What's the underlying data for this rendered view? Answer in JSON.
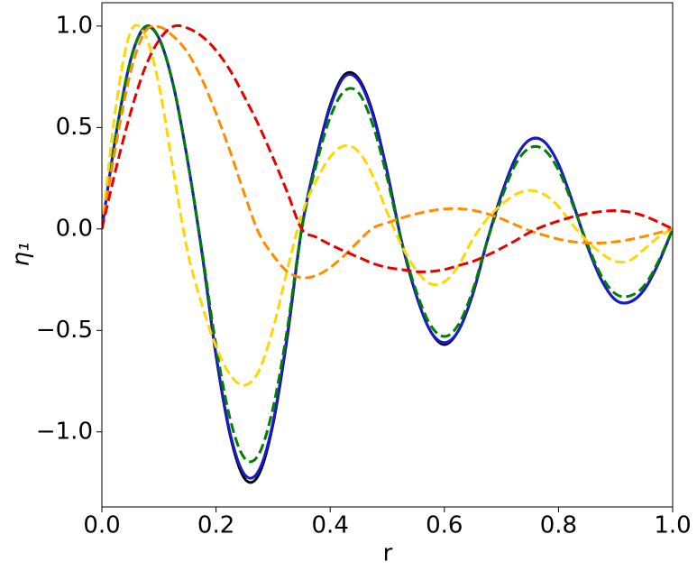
{
  "chart_data": {
    "type": "line",
    "xlabel": "r",
    "ylabel": "η₁",
    "x": [
      0,
      0.025,
      0.05,
      0.075,
      0.1,
      0.125,
      0.15,
      0.175,
      0.2,
      0.225,
      0.25,
      0.275,
      0.3,
      0.325,
      0.35,
      0.375,
      0.4,
      0.425,
      0.45,
      0.475,
      0.5,
      0.525,
      0.55,
      0.575,
      0.6,
      0.625,
      0.65,
      0.675,
      0.7,
      0.725,
      0.75,
      0.775,
      0.8,
      0.825,
      0.85,
      0.875,
      0.9,
      0.925,
      0.95,
      0.975,
      1.0
    ],
    "series": [
      {
        "color": "#000000",
        "dashed": false,
        "values": [
          0,
          0.47,
          0.83,
          0.995,
          0.94,
          0.71,
          0.34,
          -0.11,
          -0.625,
          -1.02,
          -1.23,
          -1.21,
          -0.96,
          -0.53,
          0,
          0.34,
          0.61,
          0.76,
          0.74,
          0.57,
          0.28,
          -0.06,
          -0.32,
          -0.5,
          -0.57,
          -0.5,
          -0.32,
          -0.06,
          0.17,
          0.35,
          0.44,
          0.43,
          0.32,
          0.13,
          -0.08,
          -0.25,
          -0.35,
          -0.36,
          -0.3,
          -0.17,
          0
        ]
      },
      {
        "color": "#1a1acd",
        "dashed": false,
        "values": [
          0,
          0.47,
          0.83,
          0.99,
          0.94,
          0.71,
          0.34,
          -0.11,
          -0.62,
          -1.01,
          -1.21,
          -1.19,
          -0.95,
          -0.52,
          0,
          0.34,
          0.6,
          0.75,
          0.73,
          0.56,
          0.28,
          -0.06,
          -0.32,
          -0.5,
          -0.56,
          -0.5,
          -0.32,
          -0.06,
          0.17,
          0.35,
          0.44,
          0.43,
          0.32,
          0.13,
          -0.08,
          -0.25,
          -0.35,
          -0.36,
          -0.3,
          -0.17,
          0
        ]
      },
      {
        "color": "#008000",
        "dashed": true,
        "values": [
          0,
          0.47,
          0.83,
          0.995,
          0.94,
          0.71,
          0.34,
          -0.1,
          -0.575,
          -0.94,
          -1.13,
          -1.11,
          -0.88,
          -0.49,
          0,
          0.31,
          0.55,
          0.68,
          0.67,
          0.51,
          0.25,
          -0.06,
          -0.3,
          -0.47,
          -0.53,
          -0.47,
          -0.3,
          -0.06,
          0.15,
          0.32,
          0.4,
          0.39,
          0.29,
          0.12,
          -0.07,
          -0.23,
          -0.32,
          -0.33,
          -0.28,
          -0.16,
          0
        ]
      },
      {
        "color": "#ffd700",
        "dashed": true,
        "values": [
          0,
          0.61,
          0.97,
          0.96,
          0.71,
          0.29,
          -0.11,
          -0.37,
          -0.58,
          -0.72,
          -0.77,
          -0.7,
          -0.49,
          -0.2,
          0.07,
          0.235,
          0.355,
          0.41,
          0.38,
          0.26,
          0.08,
          -0.08,
          -0.2,
          -0.27,
          -0.26,
          -0.18,
          -0.05,
          0.05,
          0.12,
          0.17,
          0.19,
          0.17,
          0.11,
          0.02,
          -0.06,
          -0.12,
          -0.16,
          -0.155,
          -0.1,
          -0.04,
          0
        ]
      },
      {
        "color": "#ff8c00",
        "dashed": true,
        "values": [
          0,
          0.42,
          0.77,
          0.97,
          0.996,
          0.95,
          0.87,
          0.74,
          0.57,
          0.38,
          0.17,
          -0.02,
          -0.13,
          -0.21,
          -0.24,
          -0.23,
          -0.19,
          -0.13,
          -0.06,
          0.005,
          0.03,
          0.054,
          0.074,
          0.089,
          0.098,
          0.1,
          0.092,
          0.075,
          0.05,
          0.02,
          -0.009,
          -0.031,
          -0.05,
          -0.063,
          -0.069,
          -0.069,
          -0.063,
          -0.052,
          -0.037,
          -0.019,
          0
        ]
      },
      {
        "color": "#e60000",
        "dashed": true,
        "values": [
          0,
          0.3,
          0.57,
          0.79,
          0.93,
          0.998,
          0.99,
          0.95,
          0.88,
          0.78,
          0.65,
          0.51,
          0.35,
          0.18,
          0,
          -0.04,
          -0.077,
          -0.11,
          -0.14,
          -0.17,
          -0.19,
          -0.2,
          -0.21,
          -0.21,
          -0.2,
          -0.18,
          -0.16,
          -0.13,
          -0.095,
          -0.057,
          -0.016,
          0.015,
          0.039,
          0.06,
          0.076,
          0.086,
          0.09,
          0.083,
          0.064,
          0.034,
          0
        ]
      }
    ],
    "xlim": [
      0,
      1.0
    ],
    "xticks": [
      {
        "value": 0,
        "label": "0.0"
      },
      0.2,
      0.4,
      0.6,
      0.8,
      {
        "value": 1.0,
        "label": "1.0"
      }
    ],
    "ylim": [
      -1.37,
      1.115
    ],
    "yticks": [
      {
        "value": -1.0,
        "label": "−1.0"
      },
      {
        "value": -0.5,
        "label": "−0.5"
      },
      {
        "value": 0,
        "label": "0.0"
      },
      {
        "value": 0.5,
        "label": "0.5"
      },
      {
        "value": 1.0,
        "label": "1.0"
      }
    ],
    "grid": false
  }
}
